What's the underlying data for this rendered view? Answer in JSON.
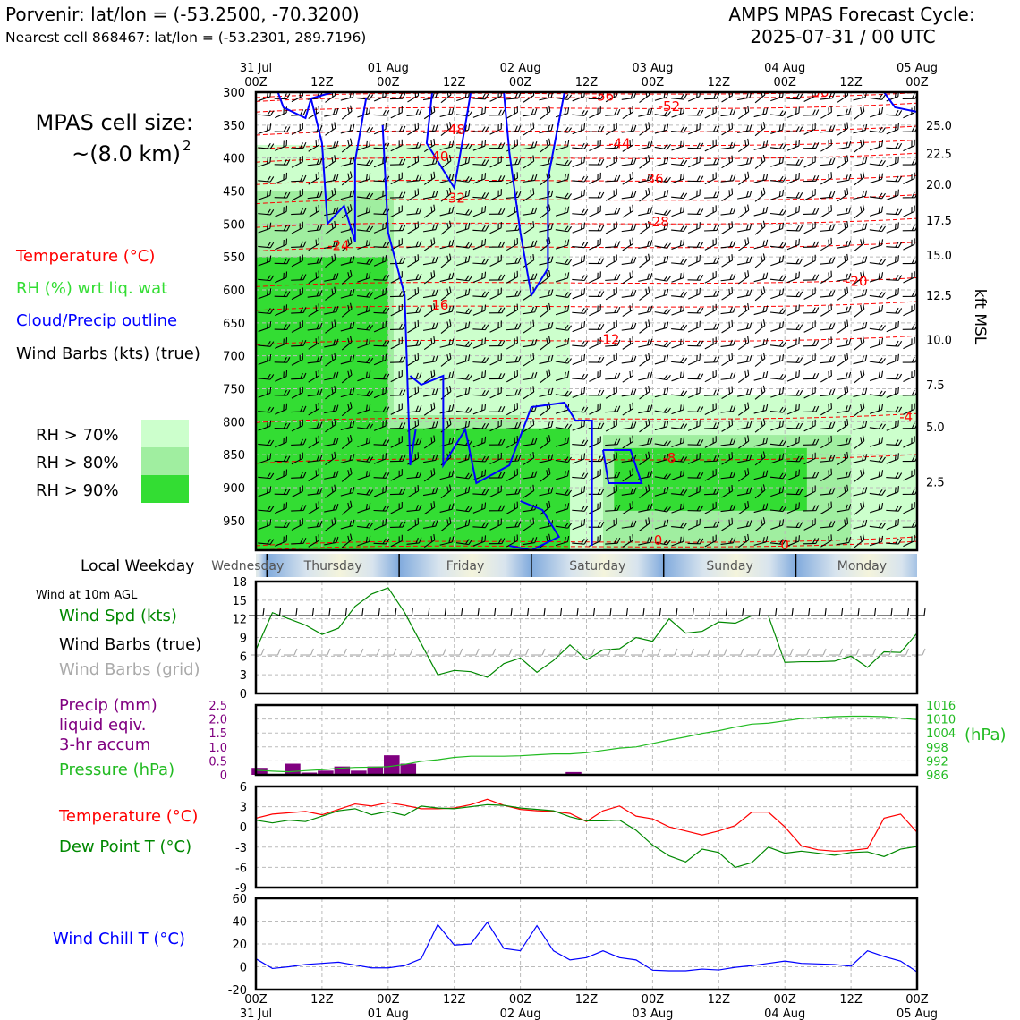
{
  "header": {
    "title_left": "Porvenir: lat/lon = (-53.2500, -70.3200)",
    "subtitle_left": "Nearest cell 868467: lat/lon = (-53.2301, 289.7196)",
    "title_right_1": "AMPS MPAS Forecast Cycle:",
    "title_right_2": "2025-07-31 / 00 UTC"
  },
  "side_labels": {
    "cell_size_1": "MPAS cell size:",
    "cell_size_2": "~(8.0 km)",
    "cell_size_sup": "2",
    "legend_temp": "Temperature (°C)",
    "legend_rh": "RH (%) wrt liq. wat",
    "legend_cloud": "Cloud/Precip outline",
    "legend_barbs": "Wind Barbs (kts) (true)",
    "rh_70": "RH > 70%",
    "rh_80": "RH > 80%",
    "rh_90": "RH > 90%",
    "kft_label": "kft MSL",
    "weekday_label": "Local Weekday",
    "wind_note": "Wind at 10m AGL",
    "wind_spd": "Wind Spd (kts)",
    "wind_barbs_true": "Wind Barbs (true)",
    "wind_barbs_grid": "Wind Barbs (grid)",
    "precip_1": "Precip (mm)",
    "precip_2": "liquid eqiv.",
    "precip_3": "3-hr accum",
    "pressure": "Pressure (hPa)",
    "hpa_unit": "(hPa)",
    "temp": "Temperature (°C)",
    "dewpoint": "Dew Point T (°C)",
    "windchill": "Wind Chill T (°C)"
  },
  "colors": {
    "temperature": "#ff0000",
    "rh70": "#ccffcc",
    "rh80": "#a0eea0",
    "rh90": "#33dd33",
    "cloud": "#0000ff",
    "pressure": "#22bb22",
    "precip": "#800080",
    "dewpoint": "#008800",
    "windchill": "#0000ff",
    "grid_barbs": "#aaaaaa"
  },
  "time_axis": {
    "top_labels": [
      {
        "hours": 0,
        "line1": "31 Jul",
        "line2": "00Z"
      },
      {
        "hours": 12,
        "line1": "",
        "line2": "12Z"
      },
      {
        "hours": 24,
        "line1": "01 Aug",
        "line2": "00Z"
      },
      {
        "hours": 36,
        "line1": "",
        "line2": "12Z"
      },
      {
        "hours": 48,
        "line1": "02 Aug",
        "line2": "00Z"
      },
      {
        "hours": 60,
        "line1": "",
        "line2": "12Z"
      },
      {
        "hours": 72,
        "line1": "03 Aug",
        "line2": "00Z"
      },
      {
        "hours": 84,
        "line1": "",
        "line2": "12Z"
      },
      {
        "hours": 96,
        "line1": "04 Aug",
        "line2": "00Z"
      },
      {
        "hours": 108,
        "line1": "",
        "line2": "12Z"
      },
      {
        "hours": 120,
        "line1": "05 Aug",
        "line2": "00Z"
      }
    ],
    "weekdays": [
      {
        "name": "Wednesday",
        "start": -5,
        "end": 2
      },
      {
        "name": "Thursday",
        "start": 2,
        "end": 26
      },
      {
        "name": "Friday",
        "start": 26,
        "end": 50
      },
      {
        "name": "Saturday",
        "start": 50,
        "end": 74
      },
      {
        "name": "Sunday",
        "start": 74,
        "end": 98
      },
      {
        "name": "Monday",
        "start": 98,
        "end": 122
      }
    ]
  },
  "chart_data": [
    {
      "type": "heatmap",
      "subtype": "pressure-time cross section",
      "x_range_hours": [
        0,
        120
      ],
      "y_range_hPa": [
        300,
        995
      ],
      "y_ticks_hPa": [
        300,
        350,
        400,
        450,
        500,
        550,
        600,
        650,
        700,
        750,
        800,
        850,
        900,
        950
      ],
      "y2_ticks_kft": [
        {
          "label": "25.0",
          "hPa": 350
        },
        {
          "label": "22.5",
          "hPa": 393
        },
        {
          "label": "20.0",
          "hPa": 440
        },
        {
          "label": "17.5",
          "hPa": 494
        },
        {
          "label": "15.0",
          "hPa": 547
        },
        {
          "label": "12.5",
          "hPa": 608
        },
        {
          "label": "10.0",
          "hPa": 675
        },
        {
          "label": "7.5",
          "hPa": 744
        },
        {
          "label": "5.0",
          "hPa": 808
        },
        {
          "label": "2.5",
          "hPa": 891
        }
      ],
      "temperature_contour_labels": [
        {
          "value": "-56",
          "hours": 63,
          "hPa": 306
        },
        {
          "value": "-52",
          "hours": 75,
          "hPa": 322
        },
        {
          "value": "-56",
          "hours": 102,
          "hPa": 300
        },
        {
          "value": "-48",
          "hours": 36,
          "hPa": 357
        },
        {
          "value": "-44",
          "hours": 66,
          "hPa": 378
        },
        {
          "value": "-40",
          "hours": 33,
          "hPa": 398
        },
        {
          "value": "-36",
          "hours": 72,
          "hPa": 432
        },
        {
          "value": "-32",
          "hours": 36,
          "hPa": 461
        },
        {
          "value": "-28",
          "hours": 73,
          "hPa": 497
        },
        {
          "value": "-24",
          "hours": 15,
          "hPa": 533
        },
        {
          "value": "-20",
          "hours": 109,
          "hPa": 587
        },
        {
          "value": "-16",
          "hours": 33,
          "hPa": 623
        },
        {
          "value": "-12",
          "hours": 64,
          "hPa": 675
        },
        {
          "value": "-8",
          "hours": 75,
          "hPa": 855
        },
        {
          "value": "-4",
          "hours": 118,
          "hPa": 793
        },
        {
          "value": "0",
          "hours": 73,
          "hPa": 980
        },
        {
          "value": "0",
          "hours": 96,
          "hPa": 987
        }
      ],
      "rh_regions": [
        {
          "level": 70,
          "hours": [
            0,
            57
          ],
          "hPa": [
            380,
            995
          ]
        },
        {
          "level": 70,
          "hours": [
            57,
            120
          ],
          "hPa": [
            760,
            995
          ]
        },
        {
          "level": 80,
          "hours": [
            0,
            25
          ],
          "hPa": [
            450,
            995
          ]
        },
        {
          "level": 80,
          "hours": [
            25,
            48
          ],
          "hPa": [
            790,
            995
          ]
        },
        {
          "level": 80,
          "hours": [
            63,
            108
          ],
          "hPa": [
            820,
            995
          ]
        },
        {
          "level": 90,
          "hours": [
            0,
            24
          ],
          "hPa": [
            550,
            995
          ]
        },
        {
          "level": 90,
          "hours": [
            24,
            57
          ],
          "hPa": [
            810,
            995
          ]
        },
        {
          "level": 90,
          "hours": [
            65,
            100
          ],
          "hPa": [
            840,
            935
          ]
        }
      ]
    },
    {
      "type": "line",
      "title": "Wind Spd (kts)",
      "x_hours": [
        0,
        3,
        6,
        9,
        12,
        15,
        18,
        21,
        24,
        27,
        30,
        33,
        36,
        39,
        42,
        45,
        48,
        51,
        54,
        57,
        60,
        63,
        66,
        69,
        72,
        75,
        78,
        81,
        84,
        87,
        90,
        93,
        96,
        99,
        102,
        105,
        108,
        111,
        114,
        117,
        120
      ],
      "values": [
        7,
        13,
        12,
        11,
        9.5,
        10.5,
        14,
        16,
        17,
        13,
        8,
        3,
        3.7,
        3.5,
        2.6,
        4.8,
        5.7,
        3.4,
        5.3,
        7.8,
        5.4,
        7,
        7.2,
        9,
        8.4,
        12,
        9.7,
        10,
        11.5,
        11.3,
        12.5,
        12.5,
        5,
        5.1,
        5.1,
        5.2,
        6,
        4.2,
        6.7,
        6.6,
        9.7
      ],
      "ylim": [
        0,
        18
      ],
      "yticks": [
        0,
        3,
        6,
        9,
        12,
        15,
        18
      ]
    },
    {
      "type": "bar",
      "title": "Precip (mm) liquid eqiv. 3-hr accum",
      "x_hours": [
        0,
        6,
        9,
        12,
        15,
        18,
        21,
        24,
        27,
        57
      ],
      "values": [
        0.25,
        0.4,
        0.08,
        0.15,
        0.3,
        0.15,
        0.3,
        0.7,
        0.4,
        0.1
      ],
      "ylim": [
        0,
        2.5
      ],
      "yticks": [
        0,
        0.5,
        1.0,
        1.5,
        2.0,
        2.5
      ]
    },
    {
      "type": "line",
      "title": "Pressure (hPa)",
      "x_hours": [
        0,
        3,
        6,
        9,
        12,
        15,
        18,
        21,
        24,
        27,
        30,
        33,
        36,
        39,
        42,
        45,
        48,
        51,
        54,
        57,
        60,
        63,
        66,
        69,
        72,
        75,
        78,
        81,
        84,
        87,
        90,
        93,
        96,
        99,
        102,
        105,
        108,
        111,
        114,
        117,
        120
      ],
      "values": [
        988,
        987.6,
        987.3,
        987.8,
        988.2,
        988.8,
        989.2,
        989.3,
        989.5,
        990.5,
        991.8,
        992.5,
        993.5,
        994,
        994,
        994,
        994.2,
        994.6,
        995,
        995,
        995.5,
        996.5,
        997.5,
        998,
        999.5,
        1001,
        1002.3,
        1003.8,
        1005,
        1006.5,
        1007.8,
        1008.2,
        1009.2,
        1010.2,
        1010.6,
        1011,
        1011.2,
        1011.2,
        1011,
        1010.4,
        1009.7
      ],
      "ylim": [
        986,
        1016
      ],
      "yticks": [
        986,
        992,
        998,
        1004,
        1010,
        1016
      ]
    },
    {
      "type": "line",
      "title": "Temperature / Dew Point T (°C)",
      "x_hours": [
        0,
        3,
        6,
        9,
        12,
        15,
        18,
        21,
        24,
        27,
        30,
        33,
        36,
        39,
        42,
        45,
        48,
        51,
        54,
        57,
        60,
        63,
        66,
        69,
        72,
        75,
        78,
        81,
        84,
        87,
        90,
        93,
        96,
        99,
        102,
        105,
        108,
        111,
        114,
        117,
        120
      ],
      "series": [
        {
          "name": "Temperature (°C)",
          "values": [
            1.3,
            1.9,
            2.1,
            2.3,
            1.8,
            2.6,
            3.4,
            3.1,
            3.6,
            3.2,
            2.7,
            2.7,
            2.8,
            3.3,
            4.1,
            3.2,
            2.6,
            2.4,
            2.3,
            2,
            0.8,
            2.4,
            3.1,
            1.6,
            1.2,
            0,
            -0.6,
            -1.2,
            -0.6,
            0.2,
            2.2,
            2.2,
            0,
            -2.8,
            -3.4,
            -3.6,
            -3.5,
            -3.2,
            1.3,
            1.9,
            -0.8
          ]
        },
        {
          "name": "Dew Point T (°C)",
          "values": [
            1,
            0.6,
            1,
            0.8,
            1.6,
            2.4,
            2.7,
            1.8,
            2.3,
            1.7,
            3.1,
            2.8,
            2.7,
            3,
            3.3,
            3.2,
            2.8,
            2.6,
            2.4,
            1.5,
            0.9,
            0.9,
            1,
            -0.5,
            -2.7,
            -4.3,
            -5.2,
            -3.3,
            -3.8,
            -6,
            -5.3,
            -3,
            -3.9,
            -3.6,
            -3.9,
            -4.2,
            -3.8,
            -3.7,
            -4.4,
            -3.3,
            -2.9
          ]
        }
      ],
      "ylim": [
        -9,
        6
      ],
      "yticks": [
        -9,
        -6,
        -3,
        0,
        3,
        6
      ]
    },
    {
      "type": "line",
      "title": "Wind Chill T (°C)",
      "x_hours": [
        0,
        3,
        6,
        9,
        12,
        15,
        18,
        21,
        24,
        27,
        30,
        33,
        36,
        39,
        42,
        45,
        48,
        51,
        54,
        57,
        60,
        63,
        66,
        69,
        72,
        75,
        78,
        81,
        84,
        87,
        90,
        93,
        96,
        99,
        102,
        105,
        108,
        111,
        114,
        117,
        120
      ],
      "values": [
        7,
        -1.5,
        0,
        2,
        3,
        4,
        1.5,
        -1,
        -1,
        1,
        7,
        37,
        19,
        20,
        39,
        16,
        14,
        36,
        14,
        6,
        8,
        14,
        8,
        6,
        -3,
        -3.5,
        -3.5,
        -2,
        -2.8,
        -0.5,
        1,
        3,
        5,
        3,
        2.5,
        2,
        0.5,
        14,
        9,
        5,
        -4.5
      ],
      "ylim": [
        -20,
        60
      ],
      "yticks": [
        -20,
        0,
        20,
        40,
        60
      ]
    }
  ]
}
